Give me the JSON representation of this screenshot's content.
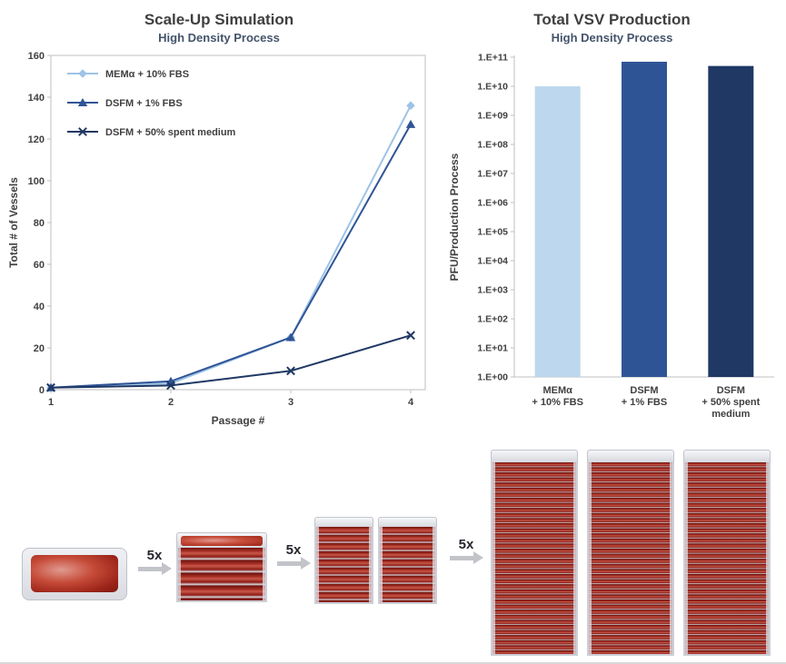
{
  "colors": {
    "title": "#3F3F3F",
    "subtitle": "#44546A",
    "axis_text": "#404040",
    "plot_border": "#BFBFBF",
    "arrow_gray": "#C2C4CA"
  },
  "chart_data": [
    {
      "type": "line",
      "title": "Scale-Up Simulation",
      "subtitle": "High Density Process",
      "xlabel": "Passage #",
      "ylabel": "Total # of Vessels",
      "x": [
        1,
        2,
        3,
        4
      ],
      "ylim": [
        0,
        160
      ],
      "ytick_step": 20,
      "grid": false,
      "legend_position": "top-left-inside",
      "series": [
        {
          "name": "MEMα + 10% FBS",
          "marker": "diamond",
          "color": "#9DC3E6",
          "values": [
            1,
            3,
            25,
            136
          ]
        },
        {
          "name": "DSFM + 1% FBS",
          "marker": "triangle",
          "color": "#2F5496",
          "values": [
            1,
            4,
            25,
            127
          ]
        },
        {
          "name": "DSFM + 50% spent medium",
          "marker": "x",
          "color": "#1F3864",
          "values": [
            1,
            2,
            9,
            26
          ]
        }
      ]
    },
    {
      "type": "bar",
      "title": "Total VSV Production",
      "subtitle": "High Density Process",
      "ylabel": "PFU/Production Process",
      "y_scale": "log",
      "grid": false,
      "yticks": [
        "1.E+00",
        "1.E+01",
        "1.E+02",
        "1.E+03",
        "1.E+04",
        "1.E+05",
        "1.E+06",
        "1.E+07",
        "1.E+08",
        "1.E+09",
        "1.E+10",
        "1.E+11"
      ],
      "categories": [
        [
          "MEMα",
          "+ 10% FBS"
        ],
        [
          "DSFM",
          "+ 1% FBS"
        ],
        [
          "DSFM",
          "+ 50% spent",
          "medium"
        ]
      ],
      "values": [
        10000000000,
        70000000000,
        50000000000
      ],
      "bar_colors": [
        "#BDD7EE",
        "#2F5496",
        "#1F3864"
      ]
    }
  ],
  "scale_up": {
    "steps": [
      {
        "label": "5x"
      },
      {
        "label": "5x"
      },
      {
        "label": "5x"
      }
    ],
    "vessels": [
      {
        "name": "single-tray"
      },
      {
        "name": "5-layer-stack"
      },
      {
        "name": "10-layer-stack-pair"
      },
      {
        "name": "40-layer-stack-triple"
      }
    ]
  }
}
